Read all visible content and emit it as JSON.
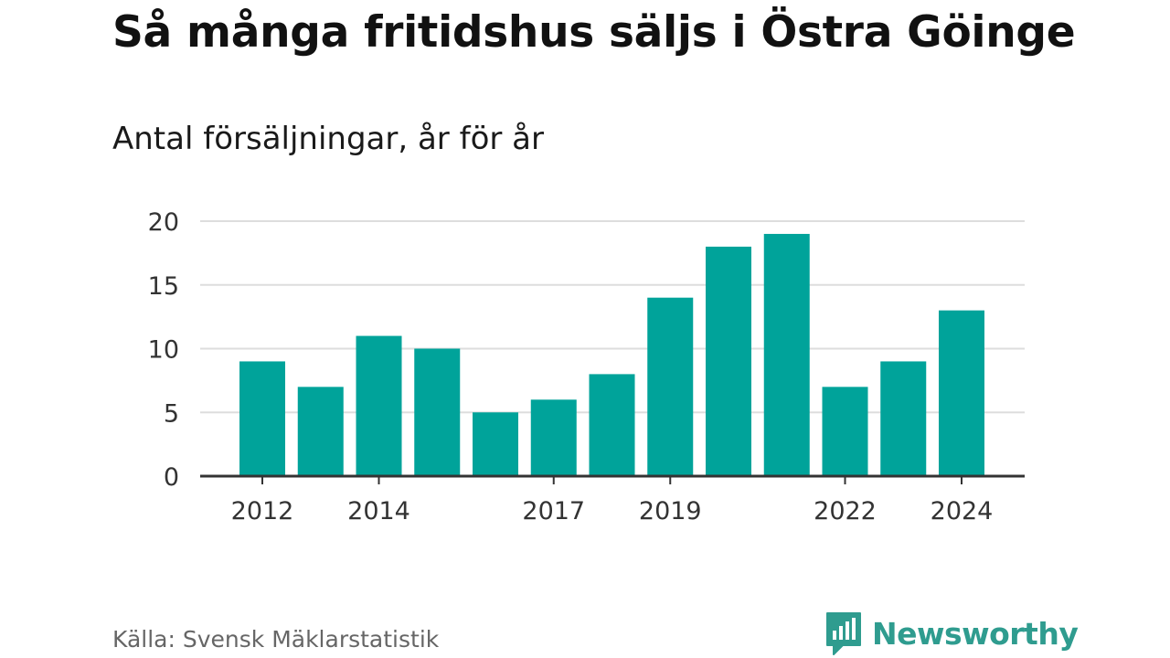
{
  "chart_data": {
    "type": "bar",
    "title": "Så många fritidshus säljs i Östra Göinge",
    "subtitle": "Antal försäljningar, år för år",
    "xlabel": "",
    "ylabel": "",
    "categories": [
      2012,
      2013,
      2014,
      2015,
      2016,
      2017,
      2018,
      2019,
      2020,
      2021,
      2022,
      2023,
      2024
    ],
    "x_tick_labels": [
      "2012",
      "2014",
      "2017",
      "2019",
      "2022",
      "2024"
    ],
    "values": [
      9,
      7,
      11,
      10,
      5,
      6,
      8,
      14,
      18,
      19,
      7,
      9,
      13
    ],
    "ylim": [
      0,
      20
    ],
    "y_ticks": [
      0,
      5,
      10,
      15,
      20
    ],
    "grid": true,
    "bar_color": "#00a39a"
  },
  "footer": {
    "source": "Källa: Svensk Mäklarstatistik",
    "brand_name": "Newsworthy",
    "brand_icon": "newsworthy-logo-icon",
    "brand_color": "#2f9c8f"
  }
}
